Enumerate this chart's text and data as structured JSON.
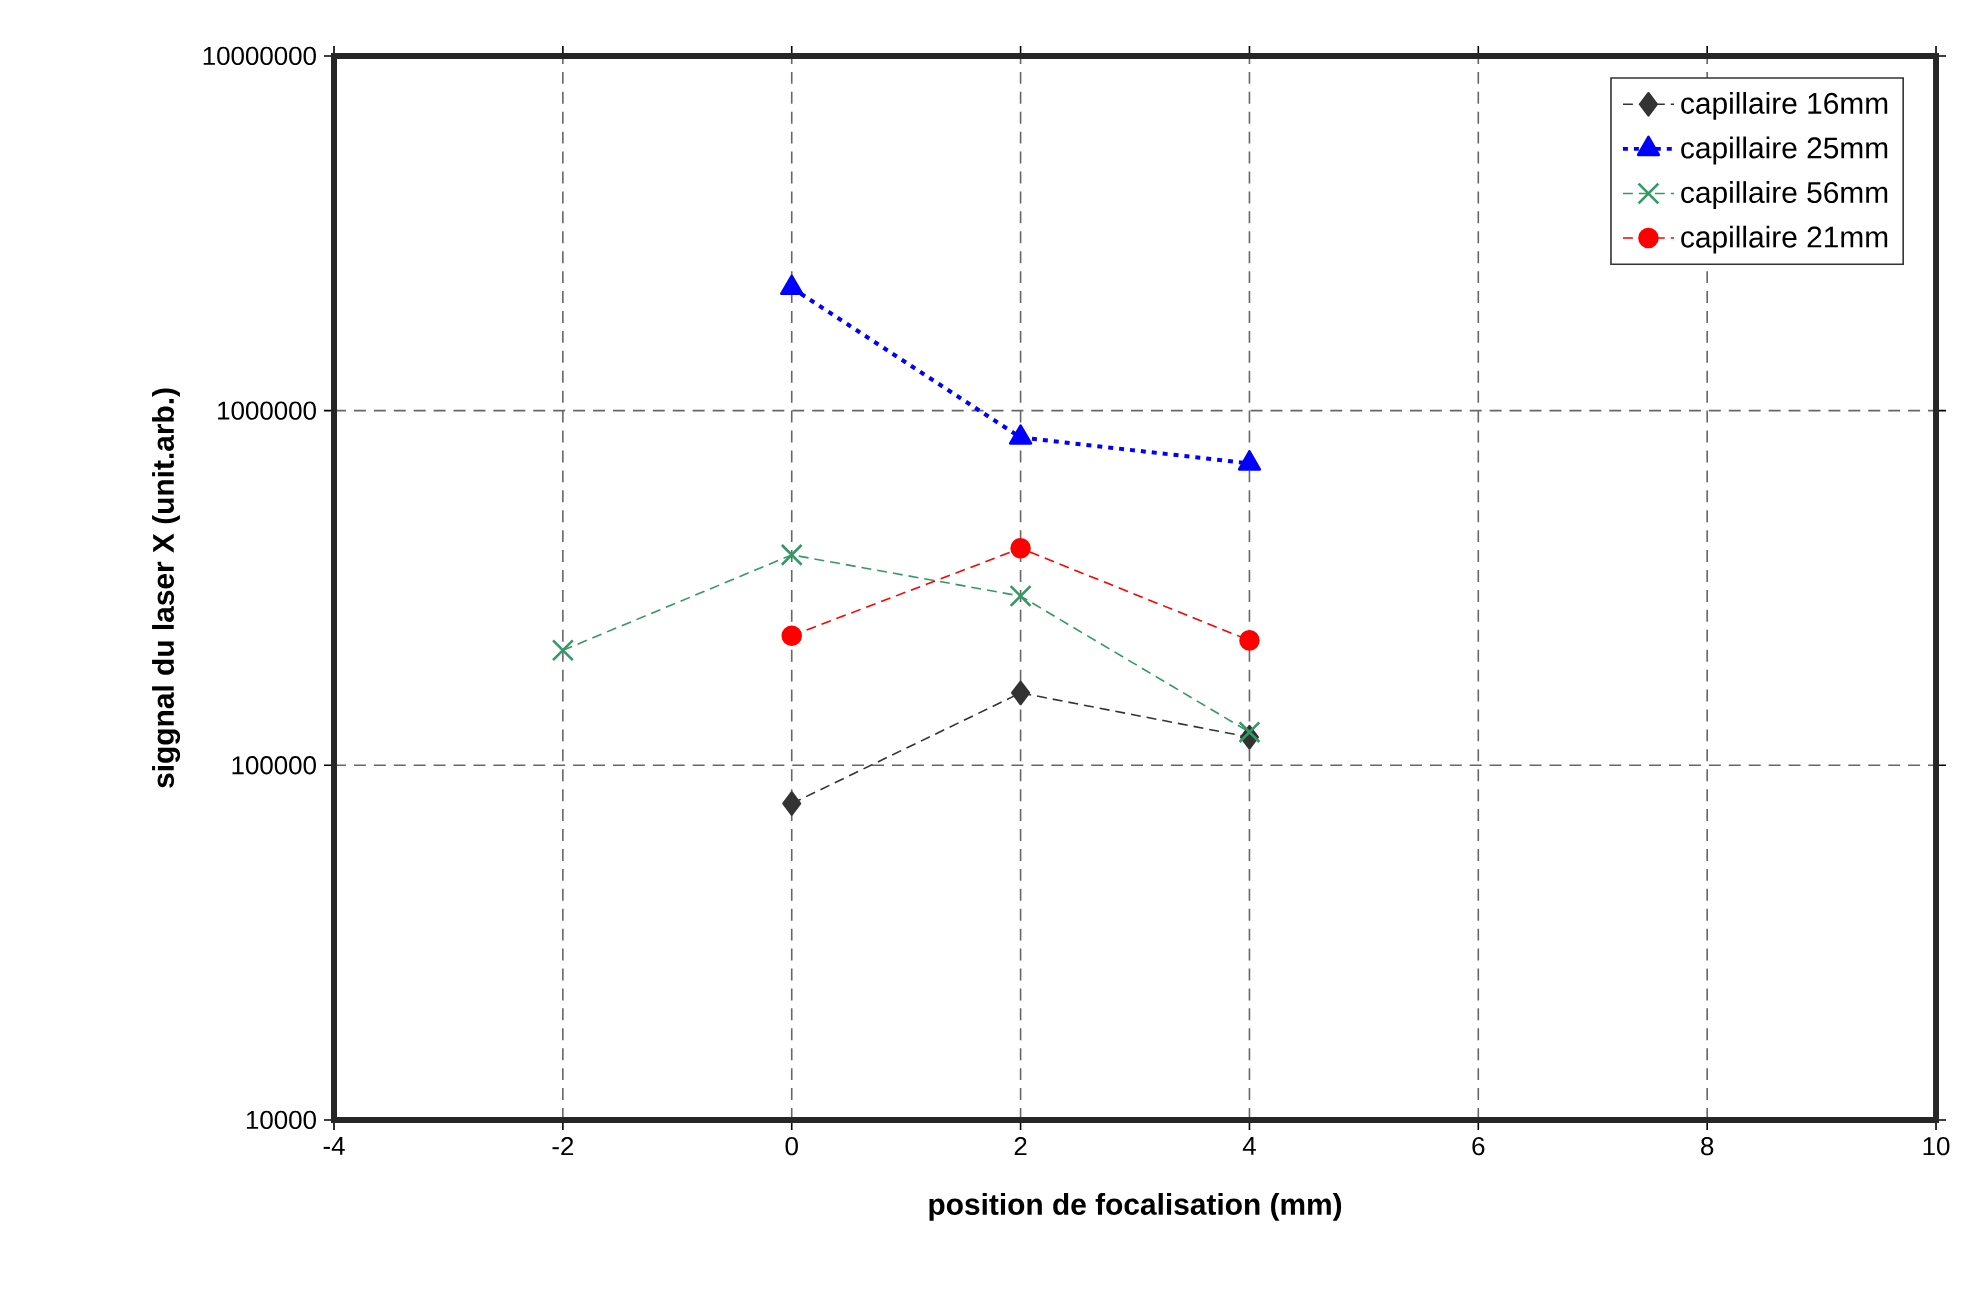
{
  "chart_data": {
    "type": "line",
    "xlabel": "position de focalisation (mm)",
    "ylabel": "siggnal du laser X (unit.arb.)",
    "log": "y",
    "grid": true,
    "legend": "top right",
    "xlim": [
      -4,
      10
    ],
    "xticks": [
      -4,
      -2,
      0,
      2,
      4,
      6,
      8,
      10
    ],
    "ylim": [
      10000,
      10000000
    ],
    "yticks": [
      10000,
      100000,
      1000000,
      10000000
    ],
    "series": [
      {
        "name": "capillaire 16mm",
        "color": "#333333",
        "marker": "diamond",
        "line_style": "dashed",
        "x": [
          0,
          2,
          4
        ],
        "values": [
          78000,
          160000,
          120000
        ]
      },
      {
        "name": "capillaire 25mm",
        "color": "#0000ff",
        "marker": "triangle",
        "line_style": "dotted",
        "x": [
          0,
          2,
          4
        ],
        "values": [
          2220000,
          840000,
          710000
        ]
      },
      {
        "name": "capillaire 56mm",
        "color": "#339966",
        "marker": "cross",
        "line_style": "dashed",
        "x": [
          -2,
          0,
          2,
          4
        ],
        "values": [
          211000,
          392000,
          300000,
          124000
        ]
      },
      {
        "name": "capillaire 21mm",
        "color": "#ff0000",
        "marker": "circle",
        "line_style": "dashed",
        "x": [
          0,
          2,
          4
        ],
        "values": [
          232000,
          409000,
          225000
        ]
      }
    ]
  }
}
